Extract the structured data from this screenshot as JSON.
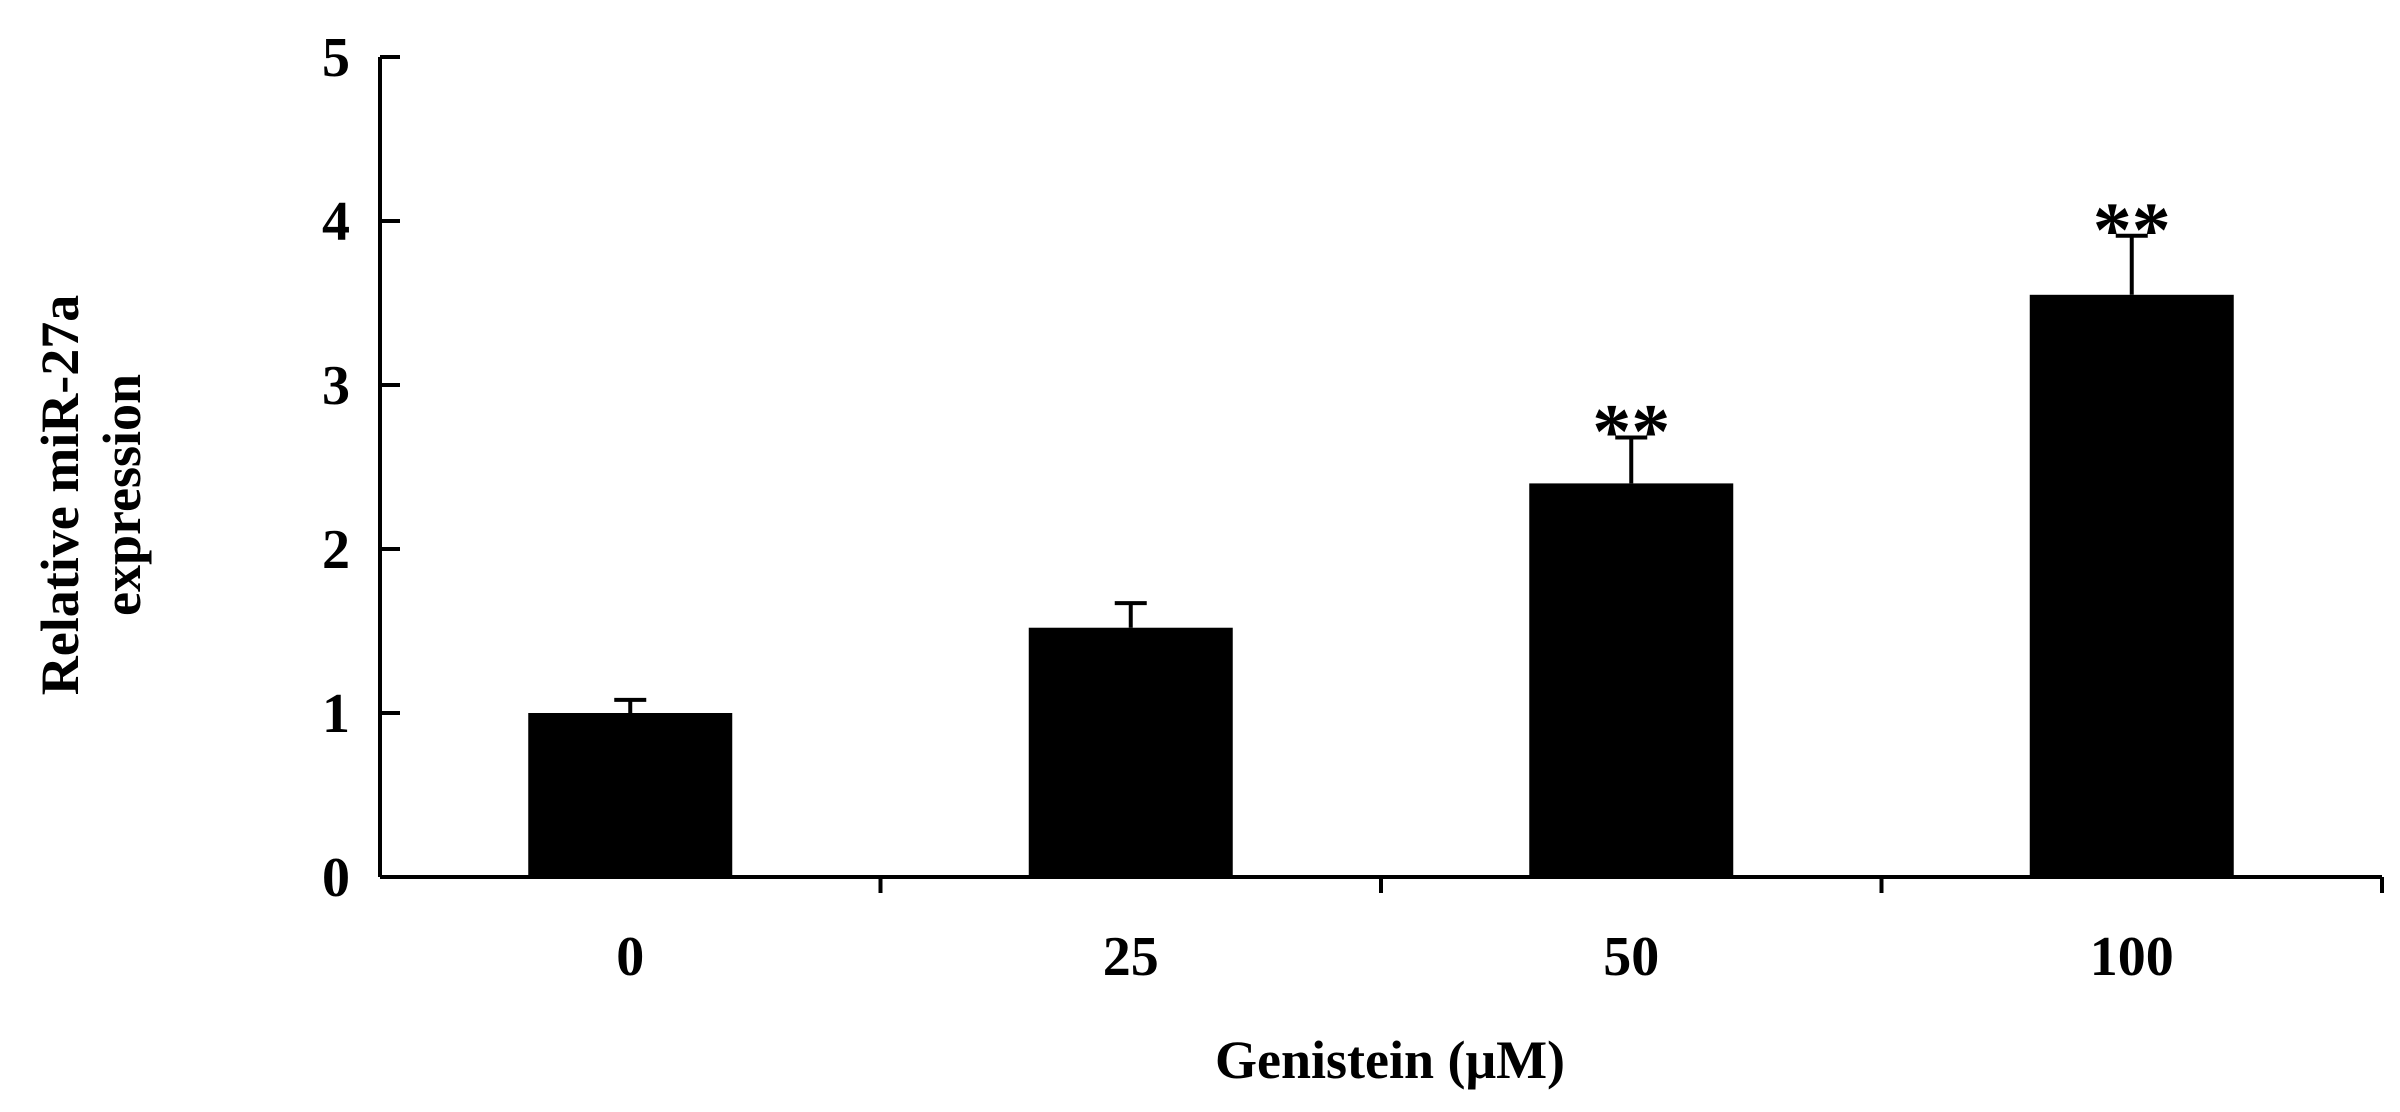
{
  "chart_data": {
    "type": "bar",
    "categories": [
      "0",
      "25",
      "50",
      "100"
    ],
    "values": [
      1.0,
      1.52,
      2.4,
      3.55
    ],
    "errors": [
      0.08,
      0.15,
      0.28,
      0.36
    ],
    "significance": [
      "",
      "",
      "**",
      "**"
    ],
    "xlabel": "Genistein (μM)",
    "ylabel_lines": [
      "Relative miR-27a",
      "expression"
    ],
    "ylim": [
      0,
      5
    ],
    "yticks": [
      0,
      1,
      2,
      3,
      4,
      5
    ],
    "ytick_labels": [
      "0",
      "1",
      "2",
      "3",
      "4",
      "5"
    ],
    "grid": false,
    "legend": "none",
    "colors": {
      "bar": "#000000",
      "axis": "#000000",
      "background": "#ffffff"
    }
  }
}
